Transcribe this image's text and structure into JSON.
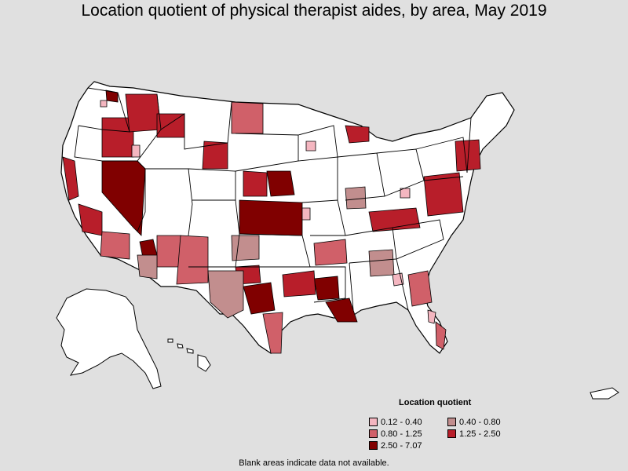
{
  "title": "Location quotient of physical therapist aides, by area, May 2019",
  "legend": {
    "title": "Location quotient",
    "items": [
      {
        "label": "0.12 - 0.40",
        "color": "#f4b6c0"
      },
      {
        "label": "0.40 - 0.80",
        "color": "#c28e8e"
      },
      {
        "label": "0.80 - 1.25",
        "color": "#d06069"
      },
      {
        "label": "1.25 - 2.50",
        "color": "#b81e2a"
      },
      {
        "label": "2.50 - 7.07",
        "color": "#800000"
      }
    ]
  },
  "footnote": "Blank areas indicate data not available.",
  "colors": {
    "background": "#e0e0e0",
    "no_data": "#ffffff",
    "border": "#000000"
  }
}
